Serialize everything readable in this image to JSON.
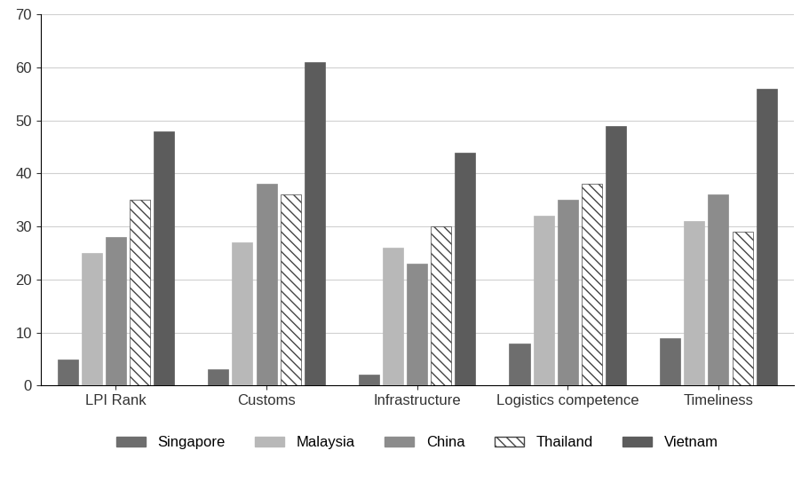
{
  "chart_data": {
    "type": "bar",
    "categories": [
      "LPI Rank",
      "Customs",
      "Infrastructure",
      "Logistics competence",
      "Timeliness"
    ],
    "series": [
      {
        "name": "Singapore",
        "color": "#6e6e6e",
        "values": [
          5,
          3,
          2,
          8,
          9
        ]
      },
      {
        "name": "Malaysia",
        "color": "#b8b8b8",
        "values": [
          25,
          27,
          26,
          32,
          31
        ]
      },
      {
        "name": "China",
        "color": "#8c8c8c",
        "values": [
          28,
          38,
          23,
          35,
          36
        ]
      },
      {
        "name": "Thailand",
        "color": "#ffffff",
        "values": [
          35,
          36,
          30,
          38,
          29
        ]
      },
      {
        "name": "Vietnam",
        "color": "#5c5c5c",
        "values": [
          48,
          61,
          44,
          49,
          56
        ]
      }
    ],
    "ylim": [
      0,
      70
    ],
    "yticks": [
      0,
      10,
      20,
      30,
      40,
      50,
      60,
      70
    ],
    "grid": true,
    "legend": "bottom"
  }
}
